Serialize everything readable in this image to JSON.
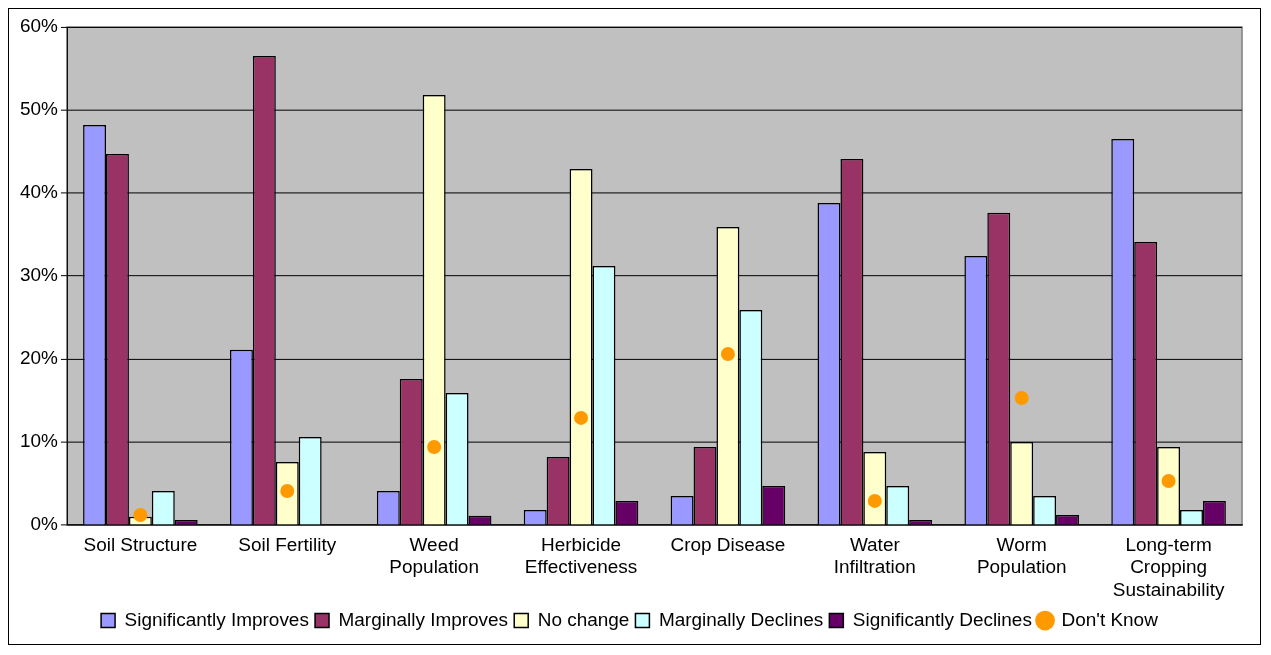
{
  "chart_data": {
    "type": "bar",
    "categories": [
      "Soil Structure",
      "Soil Fertility",
      "Weed Population",
      "Herbicide Effectiveness",
      "Crop Disease",
      "Water Infiltration",
      "Worm Population",
      "Long-term Cropping Sustainability"
    ],
    "series": [
      {
        "name": "Significantly Improves",
        "color": "#9999ff",
        "values": [
          48.2,
          21.1,
          4.1,
          1.8,
          3.5,
          38.8,
          32.4,
          46.5
        ]
      },
      {
        "name": "Marginally Improves",
        "color": "#993366",
        "values": [
          44.7,
          56.5,
          17.6,
          8.2,
          9.4,
          44.1,
          37.6,
          34.1
        ]
      },
      {
        "name": "No change",
        "color": "#ffffcc",
        "values": [
          1.0,
          7.6,
          51.8,
          42.9,
          35.9,
          8.8,
          10.0,
          9.4
        ]
      },
      {
        "name": "Marginally Declines",
        "color": "#ccffff",
        "values": [
          4.1,
          10.6,
          15.9,
          31.2,
          25.9,
          4.7,
          3.5,
          1.8
        ]
      },
      {
        "name": "Significantly Declines",
        "color": "#660066",
        "values": [
          0.6,
          0,
          1.1,
          2.9,
          4.7,
          0.6,
          1.2,
          2.9
        ]
      },
      {
        "name": "Don't Know",
        "type": "scatter",
        "color": "#ff9900",
        "x": [
          "Soil Structure",
          "Soil Fertility",
          "Weed Population",
          "Herbicide Effectiveness",
          "Crop Disease",
          "Water Infiltration",
          "Worm Population",
          "Long-term Cropping Sustainability"
        ],
        "values": [
          1.2,
          4.1,
          9.4,
          12.9,
          20.6,
          2.9,
          15.3,
          5.3
        ]
      }
    ],
    "ylim": [
      0,
      60
    ],
    "yticks": [
      {
        "value": 0,
        "label": "0%"
      },
      {
        "value": 10,
        "label": "10%"
      },
      {
        "value": 20,
        "label": "20%"
      },
      {
        "value": 30,
        "label": "30%"
      },
      {
        "value": 40,
        "label": "40%"
      },
      {
        "value": 50,
        "label": "50%"
      },
      {
        "value": 60,
        "label": "60%"
      }
    ],
    "grid": "y",
    "legend": "bottom",
    "marker": "circle"
  }
}
